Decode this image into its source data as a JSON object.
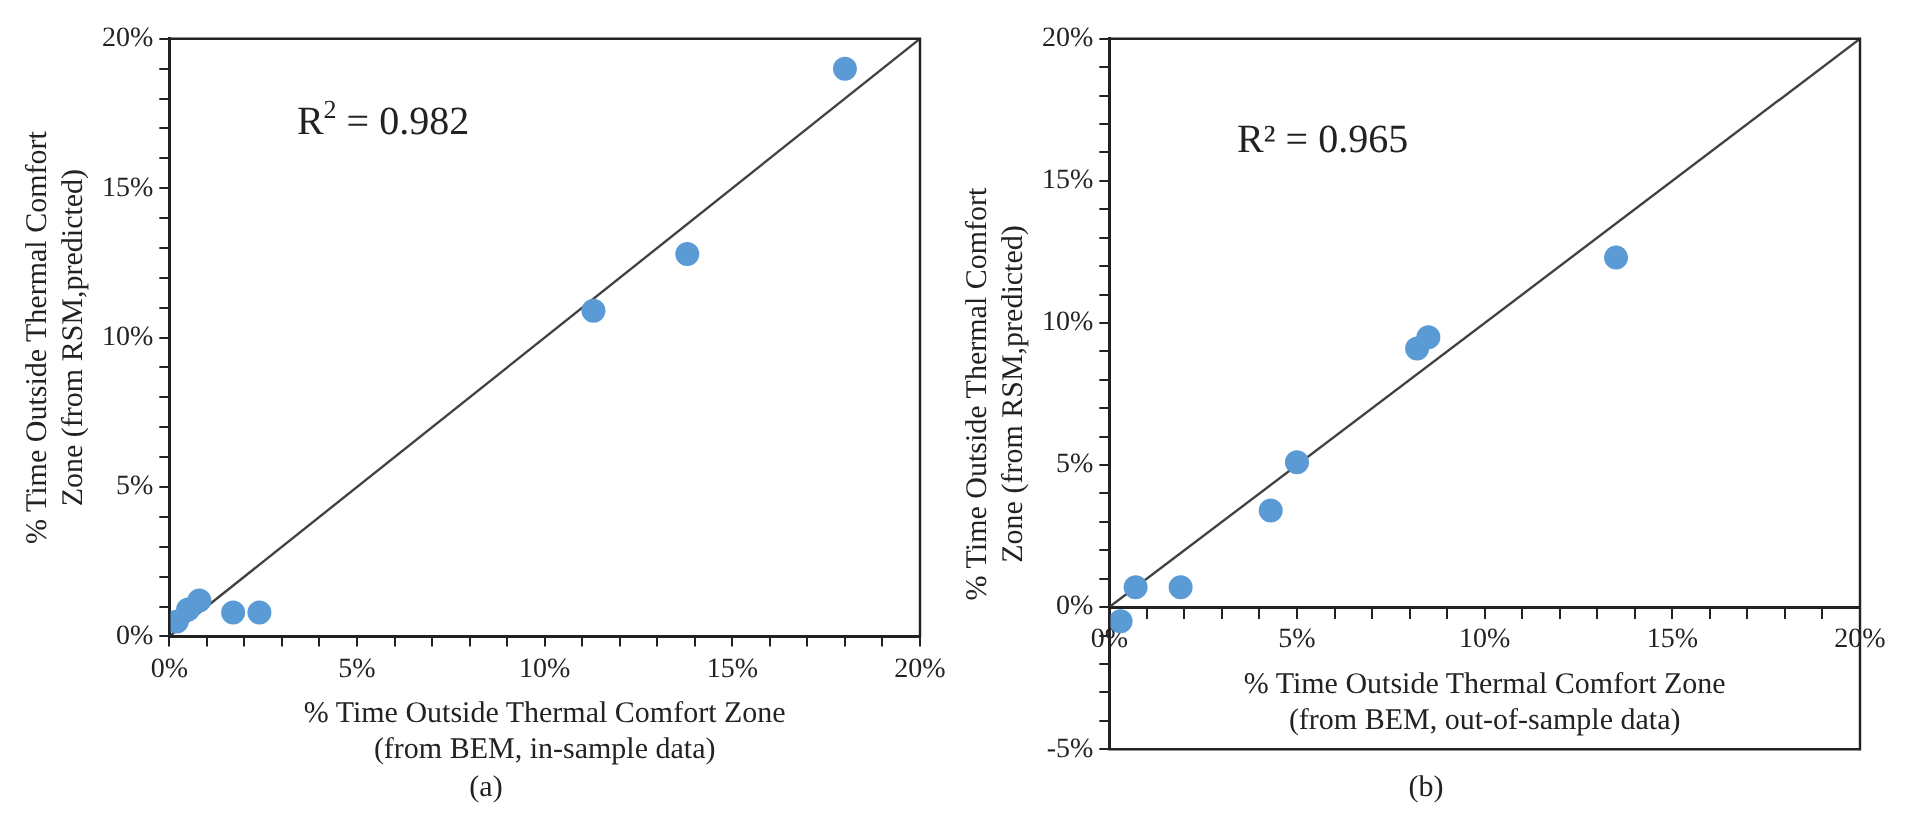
{
  "chart_data": [
    {
      "type": "scatter",
      "xlabel": "% Time Outside Thermal Comfort Zone\n(from BEM, in-sample data)",
      "ylabel": "% Time Outside Thermal Comfort\nZone (from RSM,predicted)",
      "annotations": [
        "R$^{2}$ = 0.982",
        "(a)"
      ],
      "xlim": [
        0,
        20
      ],
      "ylim": [
        0,
        20
      ],
      "xticks": [
        {
          "value": 0,
          "label": "0%"
        },
        {
          "value": 1,
          "label": null
        },
        {
          "value": 2,
          "label": null
        },
        {
          "value": 3,
          "label": null
        },
        {
          "value": 4,
          "label": null
        },
        {
          "value": 5,
          "label": "5%"
        },
        {
          "value": 6,
          "label": null
        },
        {
          "value": 7,
          "label": null
        },
        {
          "value": 8,
          "label": null
        },
        {
          "value": 9,
          "label": null
        },
        {
          "value": 10,
          "label": "10%"
        },
        {
          "value": 11,
          "label": null
        },
        {
          "value": 12,
          "label": null
        },
        {
          "value": 13,
          "label": null
        },
        {
          "value": 14,
          "label": null
        },
        {
          "value": 15,
          "label": "15%"
        },
        {
          "value": 16,
          "label": null
        },
        {
          "value": 17,
          "label": null
        },
        {
          "value": 18,
          "label": null
        },
        {
          "value": 19,
          "label": null
        },
        {
          "value": 20,
          "label": "20%"
        }
      ],
      "yticks": [
        {
          "value": 0,
          "label": "0%"
        },
        {
          "value": 1,
          "label": null
        },
        {
          "value": 2,
          "label": null
        },
        {
          "value": 3,
          "label": null
        },
        {
          "value": 4,
          "label": null
        },
        {
          "value": 5,
          "label": "5%"
        },
        {
          "value": 6,
          "label": null
        },
        {
          "value": 7,
          "label": null
        },
        {
          "value": 8,
          "label": null
        },
        {
          "value": 9,
          "label": null
        },
        {
          "value": 10,
          "label": "10%"
        },
        {
          "value": 11,
          "label": null
        },
        {
          "value": 12,
          "label": null
        },
        {
          "value": 13,
          "label": null
        },
        {
          "value": 14,
          "label": null
        },
        {
          "value": 15,
          "label": "15%"
        },
        {
          "value": 16,
          "label": null
        },
        {
          "value": 17,
          "label": null
        },
        {
          "value": 18,
          "label": null
        },
        {
          "value": 19,
          "label": null
        },
        {
          "value": 20,
          "label": "20%"
        }
      ],
      "series": [
        {
          "type": "scatter",
          "marker": "circle",
          "color": "#5b9bd5",
          "x": [
            18,
            13.8,
            11.3,
            2.4,
            1.7,
            0.8,
            0.5,
            0.2
          ],
          "values": [
            19,
            12.8,
            10.9,
            0.8,
            0.8,
            1.2,
            0.9,
            0.5
          ]
        },
        {
          "type": "line",
          "color": "#404040",
          "x": [
            0,
            20
          ],
          "values": [
            0,
            20
          ]
        }
      ]
    },
    {
      "type": "scatter",
      "xlabel": "% Time Outside Thermal Comfort Zone\n(from BEM, out-of-sample data)",
      "ylabel": "% Time Outside Thermal Comfort\nZone (from RSM,predicted)",
      "annotations": [
        "R² = 0.965",
        "(b)"
      ],
      "xlim": [
        0,
        20
      ],
      "ylim": [
        -5,
        20
      ],
      "xticks": [
        {
          "value": 0,
          "label": "0%"
        },
        {
          "value": 1,
          "label": null
        },
        {
          "value": 2,
          "label": null
        },
        {
          "value": 3,
          "label": null
        },
        {
          "value": 4,
          "label": null
        },
        {
          "value": 5,
          "label": "5%"
        },
        {
          "value": 6,
          "label": null
        },
        {
          "value": 7,
          "label": null
        },
        {
          "value": 8,
          "label": null
        },
        {
          "value": 9,
          "label": null
        },
        {
          "value": 10,
          "label": "10%"
        },
        {
          "value": 11,
          "label": null
        },
        {
          "value": 12,
          "label": null
        },
        {
          "value": 13,
          "label": null
        },
        {
          "value": 14,
          "label": null
        },
        {
          "value": 15,
          "label": "15%"
        },
        {
          "value": 16,
          "label": null
        },
        {
          "value": 17,
          "label": null
        },
        {
          "value": 18,
          "label": null
        },
        {
          "value": 19,
          "label": null
        },
        {
          "value": 20,
          "label": "20%"
        }
      ],
      "yticks": [
        {
          "value": -5,
          "label": "-5%"
        },
        {
          "value": -4,
          "label": null
        },
        {
          "value": -3,
          "label": null
        },
        {
          "value": -2,
          "label": null
        },
        {
          "value": -1,
          "label": null
        },
        {
          "value": 0,
          "label": "0%"
        },
        {
          "value": 1,
          "label": null
        },
        {
          "value": 2,
          "label": null
        },
        {
          "value": 3,
          "label": null
        },
        {
          "value": 4,
          "label": null
        },
        {
          "value": 5,
          "label": "5%"
        },
        {
          "value": 6,
          "label": null
        },
        {
          "value": 7,
          "label": null
        },
        {
          "value": 8,
          "label": null
        },
        {
          "value": 9,
          "label": null
        },
        {
          "value": 10,
          "label": "10%"
        },
        {
          "value": 11,
          "label": null
        },
        {
          "value": 12,
          "label": null
        },
        {
          "value": 13,
          "label": null
        },
        {
          "value": 14,
          "label": null
        },
        {
          "value": 15,
          "label": "15%"
        },
        {
          "value": 16,
          "label": null
        },
        {
          "value": 17,
          "label": null
        },
        {
          "value": 18,
          "label": null
        },
        {
          "value": 19,
          "label": null
        },
        {
          "value": 20,
          "label": "20%"
        }
      ],
      "series": [
        {
          "type": "scatter",
          "marker": "circle",
          "color": "#5b9bd5",
          "x": [
            13.5,
            8.5,
            8.2,
            5.0,
            4.3,
            1.9,
            0.7,
            0.3
          ],
          "values": [
            12.3,
            9.5,
            9.1,
            5.1,
            3.4,
            0.7,
            0.7,
            -0.5
          ]
        },
        {
          "type": "line",
          "color": "#404040",
          "x": [
            0,
            20
          ],
          "values": [
            0,
            20
          ]
        }
      ]
    }
  ]
}
